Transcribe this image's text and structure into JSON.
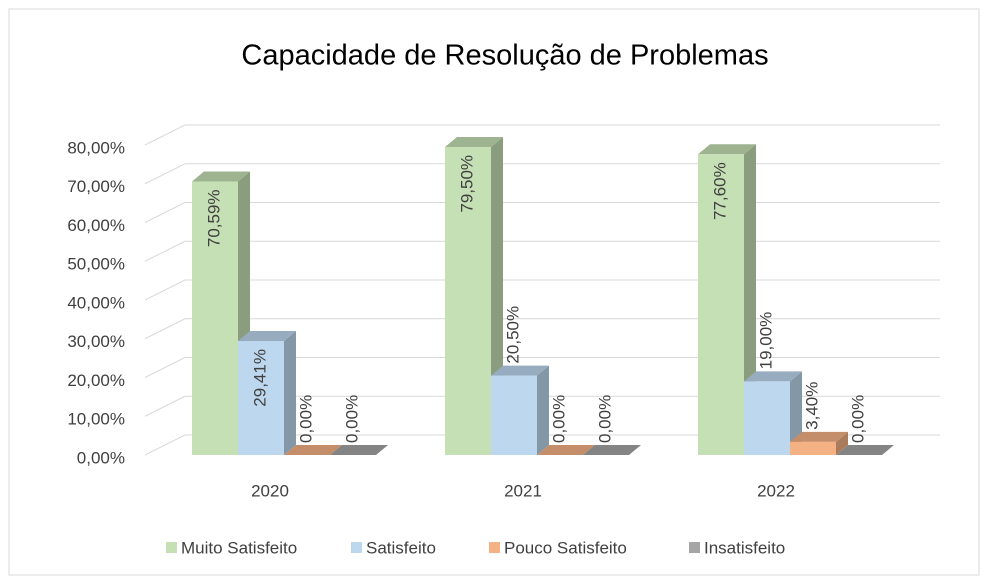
{
  "chart_data": {
    "type": "bar3d",
    "title": "Capacidade de Resolução de Problemas",
    "categories": [
      "2020",
      "2021",
      "2022"
    ],
    "series": [
      {
        "name": "Muito Satisfeito",
        "color": "#c5e0b4",
        "values": [
          70.59,
          79.5,
          77.6
        ],
        "value_labels": [
          "70,59%",
          "79,50%",
          "77,60%"
        ]
      },
      {
        "name": "Satisfeito",
        "color": "#bdd7ee",
        "values": [
          29.41,
          20.5,
          19.0
        ],
        "value_labels": [
          "29,41%",
          "20,50%",
          "19,00%"
        ]
      },
      {
        "name": "Pouco Satisfeito",
        "color": "#f4b183",
        "values": [
          0,
          0,
          3.4
        ],
        "value_labels": [
          "0,00%",
          "0,00%",
          "3,40%"
        ]
      },
      {
        "name": "Insatisfeito",
        "color": "#a5a5a5",
        "values": [
          0,
          0,
          0
        ],
        "value_labels": [
          "0,00%",
          "0,00%",
          "0,00%"
        ]
      }
    ],
    "ylim": [
      0,
      80
    ],
    "yticks": [
      {
        "value": 0,
        "label": "0,00%"
      },
      {
        "value": 10,
        "label": "10,00%"
      },
      {
        "value": 20,
        "label": "20,00%"
      },
      {
        "value": 30,
        "label": "30,00%"
      },
      {
        "value": 40,
        "label": "40,00%"
      },
      {
        "value": 50,
        "label": "50,00%"
      },
      {
        "value": 60,
        "label": "60,00%"
      },
      {
        "value": 70,
        "label": "70,00%"
      },
      {
        "value": 80,
        "label": "80,00%"
      }
    ],
    "grid": true,
    "legend": "bottom"
  }
}
